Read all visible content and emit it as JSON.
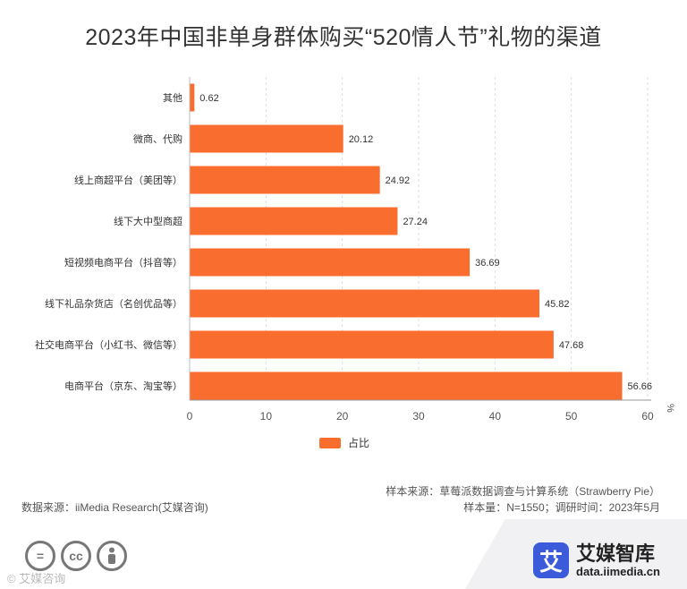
{
  "chart_data": {
    "type": "bar",
    "orientation": "horizontal",
    "title": "2023年中国非单身群体购买“520情人节”礼物的渠道",
    "categories": [
      "其他",
      "微商、代购",
      "线上商超平台（美团等）",
      "线下大中型商超",
      "短视频电商平台（抖音等）",
      "线下礼品杂货店（名创优品等）",
      "社交电商平台（小红书、微信等）",
      "电商平台（京东、淘宝等）"
    ],
    "values": [
      0.62,
      20.12,
      24.92,
      27.24,
      36.69,
      45.82,
      47.68,
      56.66
    ],
    "xlim": [
      0,
      60
    ],
    "xticks": [
      0,
      10,
      20,
      30,
      40,
      50,
      60
    ],
    "xunit": "%",
    "legend": "占比",
    "legend_position": "bottom-center",
    "grid": "vertical-dashed",
    "bar_color": "#f96d2f"
  },
  "footer": {
    "data_source": "数据来源：iiMedia Research(艾媒咨询)",
    "sample_source": "样本来源：草莓派数据调查与计算系统（Strawberry Pie）",
    "sample_info": "样本量：N=1550；调研时间：2023年5月"
  },
  "brand": {
    "logo_char": "艾",
    "name": "艾媒智库",
    "url": "data.iimedia.cn"
  },
  "cc": {
    "eq": "=",
    "cc": "cc",
    "watermark": "© 艾媒咨询"
  }
}
